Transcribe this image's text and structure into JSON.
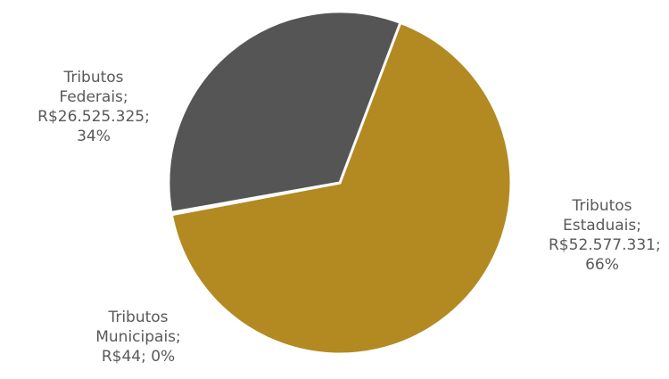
{
  "chart_data": {
    "type": "pie",
    "title": "",
    "slices": [
      {
        "name": "Tributos Estaduais",
        "value": 52577331,
        "label_lines": [
          "Tributos",
          "Estaduais;",
          "R$52.577.331;",
          "66%"
        ],
        "color": "#B38A22"
      },
      {
        "name": "Tributos Municipais",
        "value": 44,
        "label_lines": [
          "Tributos",
          "Municipais;",
          "R$44; 0%"
        ],
        "color": "#A6A6A6"
      },
      {
        "name": "Tributos Federais",
        "value": 26525325,
        "label_lines": [
          "Tributos",
          "Federais;",
          "R$26.525.325;",
          "34%"
        ],
        "color": "#555555"
      }
    ]
  }
}
